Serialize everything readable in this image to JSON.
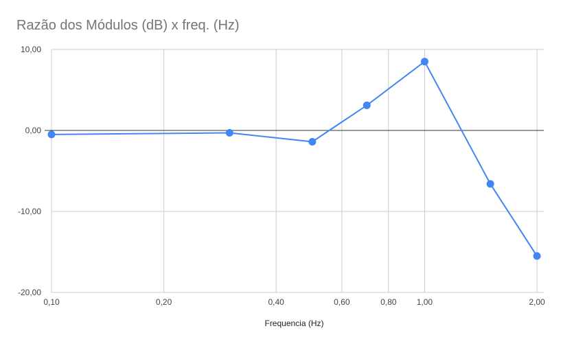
{
  "chart_data": {
    "type": "line",
    "title": "Razão dos Módulos (dB) x freq. (Hz)",
    "xlabel": "Frequencia (Hz)",
    "ylabel": "",
    "x_scale": "log",
    "xlim": [
      0.1,
      2.0
    ],
    "ylim": [
      -20,
      10
    ],
    "grid": true,
    "legend": "none",
    "x_ticks": [
      0.1,
      0.2,
      0.4,
      0.6,
      0.8,
      1.0,
      2.0
    ],
    "x_tick_labels": [
      "0,10",
      "0,20",
      "0,40",
      "0,60",
      "0,80",
      "1,00",
      "2,00"
    ],
    "y_ticks": [
      10,
      0,
      -10,
      -20
    ],
    "y_tick_labels": [
      "10,00",
      "0,00",
      "-10,00",
      "-20,00"
    ],
    "series": [
      {
        "color": "#4285f4",
        "points": [
          {
            "x": 0.1,
            "y": -0.5
          },
          {
            "x": 0.3,
            "y": -0.3
          },
          {
            "x": 0.5,
            "y": -1.4
          },
          {
            "x": 0.7,
            "y": 3.1
          },
          {
            "x": 1.0,
            "y": 8.5
          },
          {
            "x": 1.5,
            "y": -6.6
          },
          {
            "x": 2.0,
            "y": -15.5
          }
        ]
      }
    ]
  }
}
